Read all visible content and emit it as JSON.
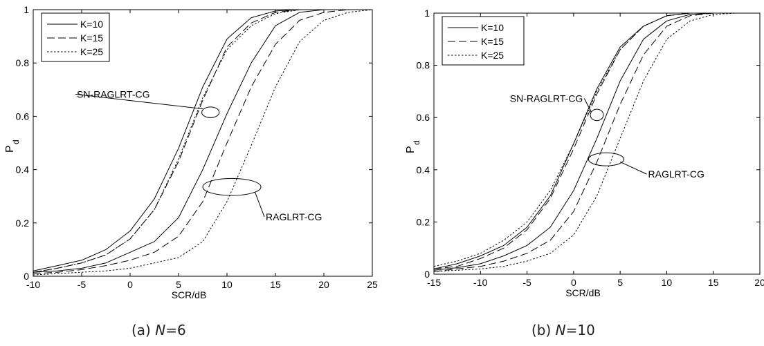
{
  "chart_data": [
    {
      "type": "line",
      "caption": {
        "label": "(a) ",
        "var": "N",
        "eq": "=6"
      },
      "xlabel": "SCR/dB",
      "ylabel": "P",
      "ylabel_sub": "d",
      "xlim": [
        -10,
        25
      ],
      "ylim": [
        0,
        1
      ],
      "xticks": [
        "-10",
        "-5",
        "0",
        "5",
        "10",
        "15",
        "20",
        "25"
      ],
      "yticks": [
        "0",
        "0.2",
        "0.4",
        "0.6",
        "0.8",
        "1"
      ],
      "grid": false,
      "legend": {
        "position": "top-left",
        "entries": [
          {
            "label": "K=10",
            "style": "solid"
          },
          {
            "label": "K=15",
            "style": "dashed"
          },
          {
            "label": "K=25",
            "style": "dotted"
          }
        ]
      },
      "series": [
        {
          "group": "SN-RAGLRT-CG",
          "style": "solid",
          "x": [
            -10,
            -7.5,
            -5,
            -2.5,
            0,
            2.5,
            5,
            7.5,
            10,
            12.5,
            15,
            17.5,
            20,
            22.5,
            25
          ],
          "y": [
            0.02,
            0.04,
            0.06,
            0.1,
            0.17,
            0.29,
            0.48,
            0.71,
            0.89,
            0.97,
            0.995,
            1,
            1,
            1,
            1
          ]
        },
        {
          "group": "SN-RAGLRT-CG",
          "style": "dashed",
          "x": [
            -10,
            -7.5,
            -5,
            -2.5,
            0,
            2.5,
            5,
            7.5,
            10,
            12.5,
            15,
            17.5,
            20,
            22.5,
            25
          ],
          "y": [
            0.015,
            0.03,
            0.05,
            0.08,
            0.14,
            0.25,
            0.43,
            0.66,
            0.86,
            0.95,
            0.99,
            1,
            1,
            1,
            1
          ]
        },
        {
          "group": "SN-RAGLRT-CG",
          "style": "dotted",
          "x": [
            -10,
            -7.5,
            -5,
            -2.5,
            0,
            2.5,
            5,
            7.5,
            10,
            12.5,
            15,
            17.5,
            20,
            22.5,
            25
          ],
          "y": [
            0.015,
            0.03,
            0.05,
            0.08,
            0.14,
            0.25,
            0.44,
            0.67,
            0.85,
            0.94,
            0.985,
            1,
            1,
            1,
            1
          ]
        },
        {
          "group": "RAGLRT-CG",
          "style": "solid",
          "x": [
            -10,
            -7.5,
            -5,
            -2.5,
            0,
            2.5,
            5,
            7.5,
            10,
            12.5,
            15,
            17.5,
            20,
            22.5,
            25
          ],
          "y": [
            0.015,
            0.02,
            0.03,
            0.05,
            0.09,
            0.13,
            0.22,
            0.4,
            0.61,
            0.8,
            0.94,
            0.99,
            1,
            1,
            1
          ]
        },
        {
          "group": "RAGLRT-CG",
          "style": "dashed",
          "x": [
            -10,
            -7.5,
            -5,
            -2.5,
            0,
            2.5,
            5,
            7.5,
            10,
            12.5,
            15,
            17.5,
            20,
            22.5,
            25
          ],
          "y": [
            0.01,
            0.015,
            0.025,
            0.04,
            0.06,
            0.09,
            0.15,
            0.28,
            0.5,
            0.71,
            0.87,
            0.96,
            0.99,
            1,
            1
          ]
        },
        {
          "group": "RAGLRT-CG",
          "style": "dotted",
          "x": [
            -10,
            -7.5,
            -5,
            -2.5,
            0,
            2.5,
            5,
            7.5,
            10,
            12.5,
            15,
            17.5,
            20,
            22.5,
            25
          ],
          "y": [
            0.005,
            0.01,
            0.015,
            0.02,
            0.03,
            0.05,
            0.07,
            0.13,
            0.28,
            0.49,
            0.71,
            0.88,
            0.96,
            0.99,
            1
          ]
        }
      ],
      "annotations": [
        {
          "text": "SN-RAGLRT-CG",
          "ellipse_center": [
            8.3,
            0.615
          ],
          "ellipse_half_width": [
            0.9,
            0.02
          ],
          "label_at": [
            -5.5,
            0.67
          ],
          "label_anchor": "start",
          "line_to": [
            7.5,
            0.628
          ]
        },
        {
          "text": "RAGLRT-CG",
          "ellipse_center": [
            10.5,
            0.335
          ],
          "ellipse_half_width": [
            3.0,
            0.032
          ],
          "label_at": [
            14,
            0.21
          ],
          "label_anchor": "start",
          "line_to": [
            12.9,
            0.315
          ]
        }
      ]
    },
    {
      "type": "line",
      "caption": {
        "label": "(b) ",
        "var": "N",
        "eq": "=10"
      },
      "xlabel": "SCR/dB",
      "ylabel": "P",
      "ylabel_sub": "d",
      "xlim": [
        -15,
        20
      ],
      "ylim": [
        0,
        1
      ],
      "xticks": [
        "-15",
        "-10",
        "-5",
        "0",
        "5",
        "10",
        "15",
        "20"
      ],
      "yticks": [
        "0",
        "0.2",
        "0.4",
        "0.6",
        "0.8",
        "1"
      ],
      "grid": false,
      "legend": {
        "position": "top-left",
        "entries": [
          {
            "label": "K=10",
            "style": "solid"
          },
          {
            "label": "K=15",
            "style": "dashed"
          },
          {
            "label": "K=25",
            "style": "dotted"
          }
        ]
      },
      "series": [
        {
          "group": "SN-RAGLRT-CG",
          "style": "solid",
          "x": [
            -15,
            -12.5,
            -10,
            -7.5,
            -5,
            -2.5,
            0,
            2.5,
            5,
            7.5,
            10,
            12.5,
            15,
            17.5,
            20
          ],
          "y": [
            0.02,
            0.04,
            0.07,
            0.11,
            0.18,
            0.3,
            0.5,
            0.71,
            0.87,
            0.95,
            0.99,
            1,
            1,
            1,
            1
          ]
        },
        {
          "group": "SN-RAGLRT-CG",
          "style": "dashed",
          "x": [
            -15,
            -12.5,
            -10,
            -7.5,
            -5,
            -2.5,
            0,
            2.5,
            5,
            7.5,
            10,
            12.5,
            15,
            17.5,
            20
          ],
          "y": [
            0.02,
            0.03,
            0.06,
            0.1,
            0.17,
            0.29,
            0.48,
            0.69,
            0.86,
            0.95,
            0.99,
            1,
            1,
            1,
            1
          ]
        },
        {
          "group": "SN-RAGLRT-CG",
          "style": "dotted",
          "x": [
            -15,
            -12.5,
            -10,
            -7.5,
            -5,
            -2.5,
            0,
            2.5,
            5,
            7.5,
            10,
            12.5,
            15,
            17.5,
            20
          ],
          "y": [
            0.03,
            0.05,
            0.08,
            0.13,
            0.2,
            0.32,
            0.5,
            0.7,
            0.86,
            0.95,
            0.99,
            1,
            1,
            1,
            1
          ]
        },
        {
          "group": "RAGLRT-CG",
          "style": "solid",
          "x": [
            -15,
            -12.5,
            -10,
            -7.5,
            -5,
            -2.5,
            0,
            2.5,
            5,
            7.5,
            10,
            12.5,
            15,
            17.5,
            20
          ],
          "y": [
            0.015,
            0.025,
            0.04,
            0.07,
            0.11,
            0.18,
            0.32,
            0.52,
            0.74,
            0.9,
            0.97,
            0.995,
            1,
            1,
            1
          ]
        },
        {
          "group": "RAGLRT-CG",
          "style": "dashed",
          "x": [
            -15,
            -12.5,
            -10,
            -7.5,
            -5,
            -2.5,
            0,
            2.5,
            5,
            7.5,
            10,
            12.5,
            15,
            17.5,
            20
          ],
          "y": [
            0.01,
            0.02,
            0.03,
            0.05,
            0.08,
            0.13,
            0.24,
            0.43,
            0.65,
            0.84,
            0.95,
            0.99,
            1,
            1,
            1
          ]
        },
        {
          "group": "RAGLRT-CG",
          "style": "dotted",
          "x": [
            -15,
            -12.5,
            -10,
            -7.5,
            -5,
            -2.5,
            0,
            2.5,
            5,
            7.5,
            10,
            12.5,
            15,
            17.5,
            20
          ],
          "y": [
            0.01,
            0.015,
            0.02,
            0.03,
            0.05,
            0.08,
            0.15,
            0.3,
            0.52,
            0.74,
            0.9,
            0.97,
            0.995,
            1,
            1
          ]
        }
      ],
      "annotations": [
        {
          "text": "SN-RAGLRT-CG",
          "ellipse_center": [
            2.5,
            0.61
          ],
          "ellipse_half_width": [
            0.7,
            0.022
          ],
          "label_at": [
            1,
            0.66
          ],
          "label_anchor": "end",
          "line_to": [
            1.9,
            0.62
          ]
        },
        {
          "text": "RAGLRT-CG",
          "ellipse_center": [
            3.5,
            0.44
          ],
          "ellipse_half_width": [
            1.9,
            0.025
          ],
          "label_at": [
            8,
            0.37
          ],
          "label_anchor": "start",
          "line_to": [
            5.0,
            0.43
          ]
        }
      ]
    }
  ]
}
